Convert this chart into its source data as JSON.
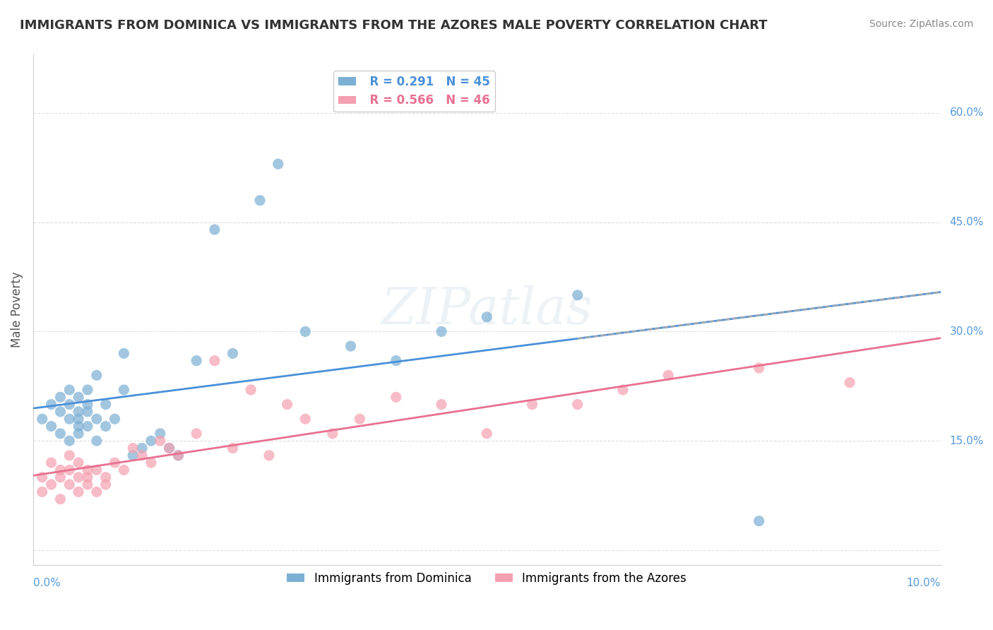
{
  "title": "IMMIGRANTS FROM DOMINICA VS IMMIGRANTS FROM THE AZORES MALE POVERTY CORRELATION CHART",
  "source": "Source: ZipAtlas.com",
  "ylabel": "Male Poverty",
  "xlim": [
    0.0,
    0.1
  ],
  "ylim": [
    -0.02,
    0.68
  ],
  "yticks": [
    0.0,
    0.15,
    0.3,
    0.45,
    0.6
  ],
  "right_ytick_labels": [
    "60.0%",
    "45.0%",
    "30.0%",
    "15.0%"
  ],
  "right_ytick_vals": [
    0.6,
    0.45,
    0.3,
    0.15
  ],
  "legend_r1": "R = 0.291   N = 45",
  "legend_r2": "R = 0.566   N = 46",
  "color_blue": "#7BAFD4",
  "color_pink": "#F4A0B0",
  "color_blue_line": "#4a90d9",
  "color_pink_line": "#e87090",
  "blue_scatter_x": [
    0.001,
    0.002,
    0.002,
    0.003,
    0.003,
    0.003,
    0.004,
    0.004,
    0.004,
    0.004,
    0.005,
    0.005,
    0.005,
    0.005,
    0.005,
    0.006,
    0.006,
    0.006,
    0.006,
    0.007,
    0.007,
    0.007,
    0.008,
    0.008,
    0.009,
    0.01,
    0.01,
    0.011,
    0.012,
    0.013,
    0.014,
    0.015,
    0.016,
    0.018,
    0.02,
    0.022,
    0.025,
    0.027,
    0.03,
    0.035,
    0.04,
    0.045,
    0.05,
    0.06,
    0.08
  ],
  "blue_scatter_y": [
    0.18,
    0.2,
    0.17,
    0.21,
    0.19,
    0.16,
    0.22,
    0.18,
    0.2,
    0.15,
    0.17,
    0.19,
    0.21,
    0.16,
    0.18,
    0.2,
    0.17,
    0.22,
    0.19,
    0.18,
    0.15,
    0.24,
    0.17,
    0.2,
    0.18,
    0.27,
    0.22,
    0.13,
    0.14,
    0.15,
    0.16,
    0.14,
    0.13,
    0.26,
    0.44,
    0.27,
    0.48,
    0.53,
    0.3,
    0.28,
    0.26,
    0.3,
    0.32,
    0.35,
    0.04
  ],
  "pink_scatter_x": [
    0.001,
    0.001,
    0.002,
    0.002,
    0.003,
    0.003,
    0.003,
    0.004,
    0.004,
    0.004,
    0.005,
    0.005,
    0.005,
    0.006,
    0.006,
    0.006,
    0.007,
    0.007,
    0.008,
    0.008,
    0.009,
    0.01,
    0.011,
    0.012,
    0.013,
    0.014,
    0.015,
    0.016,
    0.018,
    0.02,
    0.022,
    0.024,
    0.026,
    0.028,
    0.03,
    0.033,
    0.036,
    0.04,
    0.045,
    0.05,
    0.055,
    0.06,
    0.065,
    0.07,
    0.08,
    0.09
  ],
  "pink_scatter_y": [
    0.1,
    0.08,
    0.12,
    0.09,
    0.11,
    0.1,
    0.07,
    0.13,
    0.09,
    0.11,
    0.1,
    0.08,
    0.12,
    0.11,
    0.09,
    0.1,
    0.08,
    0.11,
    0.1,
    0.09,
    0.12,
    0.11,
    0.14,
    0.13,
    0.12,
    0.15,
    0.14,
    0.13,
    0.16,
    0.26,
    0.14,
    0.22,
    0.13,
    0.2,
    0.18,
    0.16,
    0.18,
    0.21,
    0.2,
    0.16,
    0.2,
    0.2,
    0.22,
    0.24,
    0.25,
    0.23
  ],
  "background_color": "#ffffff",
  "grid_color": "#e0e0e0"
}
